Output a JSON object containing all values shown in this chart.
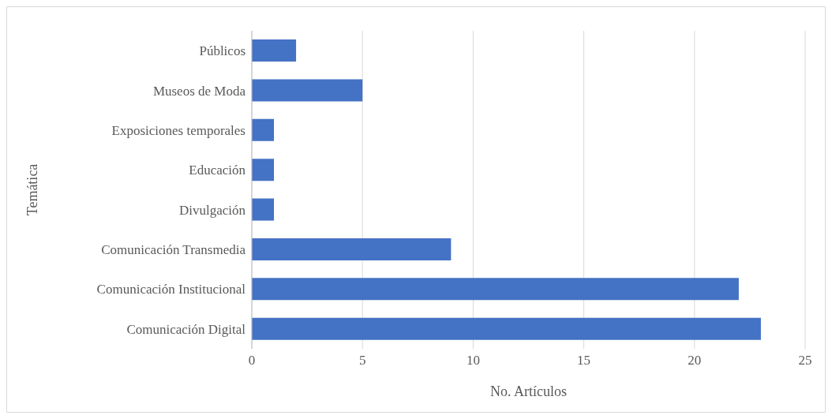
{
  "chart_data": {
    "type": "bar",
    "orientation": "horizontal",
    "categories": [
      "Públicos",
      "Museos de Moda",
      "Exposiciones temporales",
      "Educación",
      "Divulgación",
      "Comunicación Transmedia",
      "Comunicación Institucional",
      "Comunicación Digital"
    ],
    "values": [
      2,
      5,
      1,
      1,
      1,
      9,
      22,
      23
    ],
    "color": "#4472c4",
    "xlim": [
      0,
      25
    ],
    "xticks": [
      0,
      5,
      10,
      15,
      20,
      25
    ],
    "xlabel": "No. Artículos",
    "ylabel": "Temática",
    "grid": "x",
    "legend": false
  }
}
